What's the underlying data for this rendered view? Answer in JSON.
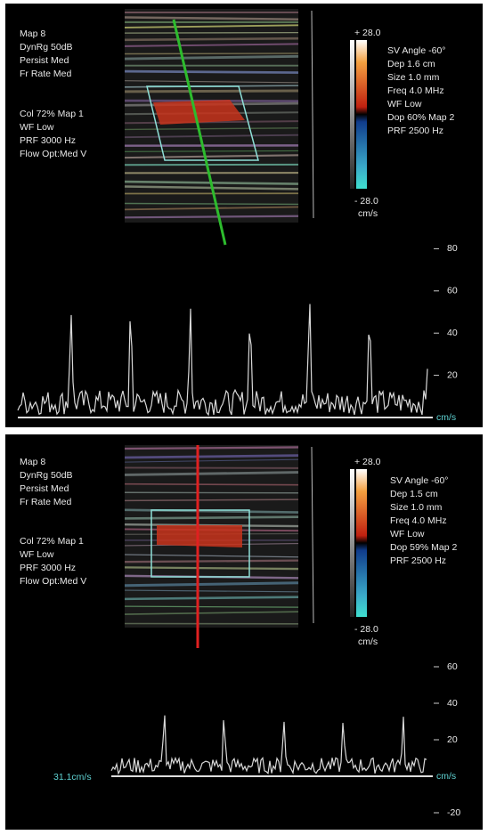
{
  "panels": [
    {
      "left_params": [
        "Map 8",
        "DynRg 50dB",
        "Persist Med",
        "Fr Rate Med"
      ],
      "color_params": [
        "Col 72%  Map 1",
        "WF Low",
        "PRF 3000  Hz",
        "Flow Opt:Med V"
      ],
      "right_params": [
        "SV Angle -60°",
        "Dep 1.6  cm",
        "Size 1.0  mm",
        "Freq 4.0  MHz",
        "WF Low",
        "Dop 60%  Map 2",
        "PRF 2500  Hz"
      ],
      "scale_top": "+ 28.0",
      "scale_bottom": "- 28.0",
      "scale_unit": "cm/s",
      "axis_ticks": [
        80,
        60,
        40,
        20
      ],
      "axis_unit": "cm/s"
    },
    {
      "left_params": [
        "Map 8",
        "DynRg 50dB",
        "Persist Med",
        "Fr Rate Med"
      ],
      "color_params": [
        "Col 72%  Map 1",
        "WF Low",
        "PRF 3000  Hz",
        "Flow Opt:Med V"
      ],
      "right_params": [
        "SV Angle -60°",
        "Dep 1.5  cm",
        "Size 1.0  mm",
        "Freq 4.0  MHz",
        "WF Low",
        "Dop 59%  Map 2",
        "PRF 2500  Hz"
      ],
      "scale_top": "+ 28.0",
      "scale_bottom": "- 28.0",
      "scale_unit": "cm/s",
      "axis_ticks": [
        60,
        40,
        20,
        -20
      ],
      "axis_unit": "cm/s",
      "velocity_readout": "31.1cm/s"
    }
  ]
}
